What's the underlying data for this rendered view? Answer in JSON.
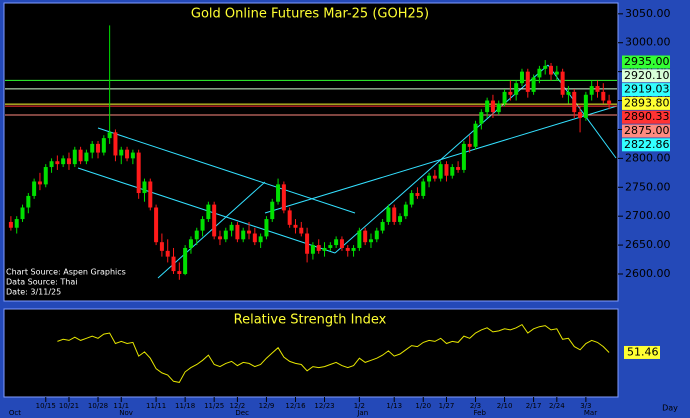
{
  "chart_data": {
    "type": "candlestick",
    "title": "Gold Online Futures Mar-25 (GOH25)",
    "annotations": [
      "Chart Source: Aspen Graphics",
      "Data Source: Thai",
      "Date: 3/11/25"
    ],
    "x_axis_unit": "Day",
    "categories": [
      null,
      null,
      null,
      null,
      null,
      null,
      "10/15",
      null,
      null,
      null,
      "10/21",
      null,
      null,
      null,
      null,
      "10/28",
      null,
      null,
      null,
      "11/1",
      null,
      null,
      null,
      null,
      null,
      "11/11",
      null,
      null,
      null,
      null,
      "11/18",
      null,
      null,
      null,
      null,
      "11/25",
      null,
      null,
      null,
      "12/2",
      null,
      null,
      null,
      null,
      "12/9",
      null,
      null,
      null,
      null,
      "12/16",
      null,
      null,
      null,
      null,
      "12/23",
      null,
      null,
      null,
      null,
      null,
      "1/2",
      null,
      null,
      null,
      null,
      null,
      "1/13",
      null,
      null,
      null,
      null,
      "1/20",
      null,
      null,
      null,
      "1/27",
      null,
      null,
      null,
      null,
      "2/3",
      null,
      null,
      null,
      null,
      "2/10",
      null,
      null,
      null,
      null,
      "2/17",
      null,
      null,
      null,
      "2/24",
      null,
      null,
      null,
      null,
      "3/3",
      null,
      null,
      null,
      null
    ],
    "month_labels": [
      "Oct",
      null,
      null,
      null,
      null,
      null,
      null,
      null,
      null,
      null,
      null,
      null,
      null,
      null,
      null,
      null,
      null,
      null,
      null,
      "Nov",
      null,
      null,
      null,
      null,
      null,
      null,
      null,
      null,
      null,
      null,
      null,
      null,
      null,
      null,
      null,
      null,
      null,
      null,
      null,
      "Dec",
      null,
      null,
      null,
      null,
      null,
      null,
      null,
      null,
      null,
      null,
      null,
      null,
      null,
      null,
      null,
      null,
      null,
      null,
      null,
      null,
      "Jan",
      null,
      null,
      null,
      null,
      null,
      null,
      null,
      null,
      null,
      null,
      null,
      null,
      null,
      null,
      null,
      null,
      null,
      null,
      null,
      "Feb",
      null,
      null,
      null,
      null,
      null,
      null,
      null,
      null,
      null,
      null,
      null,
      null,
      null,
      null,
      null,
      null,
      null,
      null,
      "Mar",
      null,
      null,
      null,
      null
    ],
    "ohlc": [
      [
        2690,
        2700,
        2675,
        2680
      ],
      [
        2680,
        2700,
        2670,
        2695
      ],
      [
        2695,
        2720,
        2690,
        2715
      ],
      [
        2715,
        2740,
        2705,
        2735
      ],
      [
        2735,
        2765,
        2730,
        2760
      ],
      [
        2760,
        2775,
        2745,
        2755
      ],
      [
        2755,
        2790,
        2750,
        2785
      ],
      [
        2785,
        2800,
        2775,
        2795
      ],
      [
        2795,
        2805,
        2780,
        2790
      ],
      [
        2790,
        2805,
        2785,
        2800
      ],
      [
        2800,
        2810,
        2780,
        2790
      ],
      [
        2790,
        2820,
        2785,
        2815
      ],
      [
        2815,
        2820,
        2790,
        2795
      ],
      [
        2795,
        2815,
        2790,
        2810
      ],
      [
        2810,
        2830,
        2800,
        2825
      ],
      [
        2825,
        2830,
        2800,
        2810
      ],
      [
        2810,
        2840,
        2805,
        2835
      ],
      [
        2835,
        3030,
        2825,
        2845
      ],
      [
        2845,
        2850,
        2795,
        2805
      ],
      [
        2805,
        2820,
        2790,
        2815
      ],
      [
        2815,
        2820,
        2795,
        2800
      ],
      [
        2800,
        2815,
        2790,
        2810
      ],
      [
        2810,
        2815,
        2730,
        2740
      ],
      [
        2740,
        2765,
        2725,
        2760
      ],
      [
        2760,
        2765,
        2710,
        2715
      ],
      [
        2715,
        2720,
        2650,
        2655
      ],
      [
        2655,
        2670,
        2630,
        2640
      ],
      [
        2640,
        2660,
        2620,
        2630
      ],
      [
        2630,
        2645,
        2600,
        2605
      ],
      [
        2605,
        2620,
        2590,
        2600
      ],
      [
        2600,
        2650,
        2598,
        2645
      ],
      [
        2645,
        2665,
        2635,
        2660
      ],
      [
        2660,
        2680,
        2650,
        2675
      ],
      [
        2675,
        2700,
        2665,
        2695
      ],
      [
        2695,
        2725,
        2690,
        2720
      ],
      [
        2720,
        2725,
        2660,
        2665
      ],
      [
        2665,
        2675,
        2650,
        2660
      ],
      [
        2660,
        2680,
        2655,
        2675
      ],
      [
        2675,
        2690,
        2665,
        2685
      ],
      [
        2685,
        2690,
        2655,
        2660
      ],
      [
        2660,
        2680,
        2655,
        2675
      ],
      [
        2675,
        2690,
        2660,
        2670
      ],
      [
        2670,
        2680,
        2650,
        2655
      ],
      [
        2655,
        2670,
        2645,
        2665
      ],
      [
        2665,
        2700,
        2660,
        2695
      ],
      [
        2695,
        2730,
        2690,
        2725
      ],
      [
        2725,
        2765,
        2720,
        2755
      ],
      [
        2755,
        2760,
        2705,
        2710
      ],
      [
        2710,
        2715,
        2680,
        2685
      ],
      [
        2685,
        2695,
        2670,
        2680
      ],
      [
        2680,
        2690,
        2665,
        2670
      ],
      [
        2670,
        2680,
        2620,
        2635
      ],
      [
        2635,
        2655,
        2625,
        2650
      ],
      [
        2650,
        2660,
        2635,
        2640
      ],
      [
        2640,
        2655,
        2630,
        2645
      ],
      [
        2645,
        2655,
        2640,
        2650
      ],
      [
        2650,
        2665,
        2645,
        2660
      ],
      [
        2660,
        2665,
        2640,
        2645
      ],
      [
        2645,
        2650,
        2630,
        2640
      ],
      [
        2640,
        2650,
        2630,
        2645
      ],
      [
        2645,
        2680,
        2640,
        2675
      ],
      [
        2675,
        2680,
        2650,
        2655
      ],
      [
        2655,
        2670,
        2645,
        2660
      ],
      [
        2660,
        2680,
        2655,
        2675
      ],
      [
        2675,
        2695,
        2670,
        2690
      ],
      [
        2690,
        2720,
        2685,
        2715
      ],
      [
        2715,
        2720,
        2685,
        2690
      ],
      [
        2690,
        2705,
        2685,
        2700
      ],
      [
        2700,
        2725,
        2695,
        2720
      ],
      [
        2720,
        2745,
        2715,
        2740
      ],
      [
        2740,
        2750,
        2730,
        2735
      ],
      [
        2735,
        2765,
        2730,
        2760
      ],
      [
        2760,
        2775,
        2750,
        2770
      ],
      [
        2770,
        2780,
        2760,
        2765
      ],
      [
        2765,
        2795,
        2760,
        2790
      ],
      [
        2790,
        2795,
        2760,
        2770
      ],
      [
        2770,
        2790,
        2765,
        2785
      ],
      [
        2785,
        2795,
        2775,
        2780
      ],
      [
        2780,
        2830,
        2775,
        2825
      ],
      [
        2825,
        2840,
        2810,
        2820
      ],
      [
        2820,
        2865,
        2815,
        2860
      ],
      [
        2860,
        2885,
        2850,
        2880
      ],
      [
        2880,
        2905,
        2870,
        2900
      ],
      [
        2900,
        2910,
        2870,
        2880
      ],
      [
        2880,
        2900,
        2875,
        2895
      ],
      [
        2895,
        2920,
        2890,
        2915
      ],
      [
        2915,
        2935,
        2900,
        2910
      ],
      [
        2910,
        2935,
        2900,
        2930
      ],
      [
        2930,
        2955,
        2925,
        2950
      ],
      [
        2950,
        2955,
        2905,
        2915
      ],
      [
        2915,
        2945,
        2910,
        2940
      ],
      [
        2940,
        2960,
        2930,
        2955
      ],
      [
        2955,
        2970,
        2945,
        2960
      ],
      [
        2960,
        2965,
        2935,
        2945
      ],
      [
        2945,
        2960,
        2935,
        2950
      ],
      [
        2950,
        2955,
        2905,
        2910
      ],
      [
        2910,
        2925,
        2895,
        2915
      ],
      [
        2915,
        2920,
        2870,
        2880
      ],
      [
        2880,
        2890,
        2845,
        2870
      ],
      [
        2870,
        2915,
        2865,
        2910
      ],
      [
        2910,
        2935,
        2900,
        2925
      ],
      [
        2925,
        2935,
        2905,
        2915
      ],
      [
        2915,
        2930,
        2895,
        2900
      ],
      [
        2900,
        2910,
        2885,
        2893.8
      ]
    ],
    "up_color": "#00e000",
    "down_color": "#ff1a1a",
    "ylim": [
      2555,
      3067
    ],
    "yticks": [
      {
        "value": 2600,
        "label": "2600.00"
      },
      {
        "value": 2650,
        "label": "2650.00"
      },
      {
        "value": 2700,
        "label": "2700.00"
      },
      {
        "value": 2750,
        "label": "2750.00"
      },
      {
        "value": 2800,
        "label": "2800.00"
      },
      {
        "value": 2850,
        "label": "2850.00"
      },
      {
        "value": 2900,
        "label": "2900.00"
      },
      {
        "value": 2950,
        "label": "2950.00"
      },
      {
        "value": 3000,
        "label": "3000.00"
      },
      {
        "value": 3050,
        "label": "3050.00"
      }
    ],
    "price_levels": [
      {
        "value": 2935,
        "label": "2935.00",
        "color": "#33ff33",
        "line": true
      },
      {
        "value": 2920.1,
        "label": "2920.10",
        "color": "#d8ffd8",
        "line": true
      },
      {
        "value": 2919.03,
        "label": "2919.03",
        "color": "#33ffff",
        "line": false
      },
      {
        "value": 2893.8,
        "label": "2893.80",
        "color": "#ffff33",
        "line": true
      },
      {
        "value": 2890.33,
        "label": "2890.33",
        "color": "#ff3333",
        "line": true
      },
      {
        "value": 2875,
        "label": "2875.00",
        "color": "#ff8a80",
        "line": true
      },
      {
        "value": 2822.86,
        "label": "2822.86",
        "color": "#33ffff",
        "line": false
      }
    ],
    "indicator": {
      "type": "line",
      "title": "Relative Strength Index",
      "color": "#e6e600",
      "ylim": [
        10,
        90
      ],
      "values": [
        null,
        null,
        null,
        null,
        null,
        null,
        null,
        null,
        62,
        64,
        63,
        66,
        63,
        65,
        67,
        65,
        69,
        70,
        60,
        62,
        60,
        61,
        48,
        52,
        46,
        36,
        32,
        30,
        24,
        23,
        33,
        37,
        40,
        44,
        49,
        40,
        38,
        41,
        43,
        39,
        42,
        41,
        38,
        40,
        46,
        51,
        56,
        47,
        43,
        41,
        40,
        34,
        38,
        37,
        38,
        40,
        42,
        39,
        37,
        39,
        46,
        42,
        44,
        46,
        49,
        53,
        48,
        50,
        54,
        58,
        57,
        61,
        63,
        62,
        65,
        60,
        62,
        61,
        67,
        65,
        70,
        73,
        75,
        71,
        72,
        74,
        73,
        75,
        78,
        70,
        74,
        76,
        77,
        73,
        74,
        64,
        65,
        57,
        54,
        60,
        63,
        61,
        57,
        51.46
      ]
    }
  }
}
